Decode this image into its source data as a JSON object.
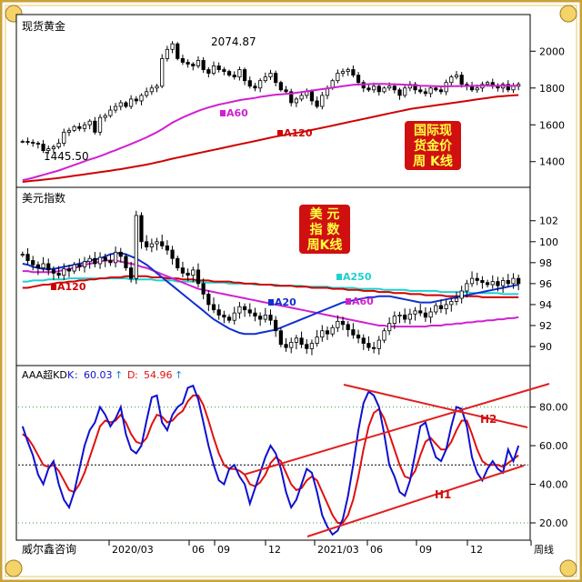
{
  "colors": {
    "frame_gold": "#c9a23a",
    "up_candle": "#ffffff",
    "down_candle": "#000000",
    "ma60": "#d020d0",
    "ma120": "#d00000",
    "ma20": "#1030d0",
    "ma250": "#20d0d0",
    "k_line": "#1010d0",
    "d_line": "#e01010",
    "trend_line": "#e02020",
    "label_box": "#d01010",
    "label_text": "#ffff40"
  },
  "chart_data": [
    {
      "type": "candlestick",
      "panel": "gold",
      "title": "现货黄金",
      "y_ticks": [
        "2000",
        "1800",
        "1600",
        "1400"
      ],
      "ylim": [
        1290,
        2130
      ],
      "annotations": {
        "high": "2074.87",
        "low": "1445.50"
      },
      "label_box": [
        "国际现",
        "货金价",
        "周 K线"
      ],
      "ma_labels": {
        "ma60": "A60",
        "ma120": "A120"
      },
      "series_description": "weekly gold spot candles",
      "close": [
        1510,
        1505,
        1500,
        1495,
        1460,
        1470,
        1480,
        1500,
        1560,
        1570,
        1590,
        1580,
        1600,
        1620,
        1560,
        1640,
        1650,
        1680,
        1700,
        1720,
        1700,
        1740,
        1730,
        1760,
        1780,
        1800,
        1810,
        1960,
        2010,
        2040,
        1960,
        1940,
        1930,
        1920,
        1950,
        1900,
        1880,
        1920,
        1900,
        1890,
        1870,
        1860,
        1900,
        1840,
        1810,
        1800,
        1840,
        1860,
        1880,
        1830,
        1790,
        1780,
        1720,
        1740,
        1760,
        1780,
        1730,
        1700,
        1760,
        1800,
        1840,
        1880,
        1890,
        1900,
        1870,
        1830,
        1800,
        1790,
        1810,
        1780,
        1800,
        1810,
        1790,
        1760,
        1800,
        1820,
        1790,
        1780,
        1770,
        1800,
        1790,
        1780,
        1830,
        1860,
        1870,
        1820,
        1810,
        1790,
        1800,
        1820,
        1830,
        1810,
        1800,
        1820,
        1790,
        1810,
        1820
      ],
      "ma60": [
        1300,
        1305,
        1312,
        1320,
        1328,
        1336,
        1344,
        1352,
        1362,
        1372,
        1382,
        1392,
        1402,
        1412,
        1420,
        1430,
        1440,
        1452,
        1462,
        1474,
        1484,
        1496,
        1508,
        1520,
        1532,
        1546,
        1560,
        1576,
        1594,
        1612,
        1626,
        1640,
        1652,
        1664,
        1676,
        1686,
        1694,
        1702,
        1710,
        1716,
        1722,
        1728,
        1734,
        1738,
        1742,
        1746,
        1752,
        1756,
        1760,
        1764,
        1766,
        1768,
        1770,
        1774,
        1778,
        1782,
        1786,
        1790,
        1794,
        1798,
        1802,
        1806,
        1810,
        1814,
        1817,
        1819,
        1820,
        1821,
        1822,
        1822,
        1822,
        1821,
        1820,
        1819,
        1818,
        1816,
        1815,
        1813,
        1812,
        1811,
        1810,
        1809,
        1809,
        1810,
        1810,
        1811,
        1811,
        1812,
        1812,
        1813,
        1813,
        1813,
        1813,
        1813,
        1813,
        1813,
        1813
      ],
      "ma120": [
        1290,
        1293,
        1296,
        1299,
        1302,
        1305,
        1308,
        1311,
        1315,
        1319,
        1323,
        1327,
        1331,
        1335,
        1339,
        1343,
        1347,
        1351,
        1355,
        1359,
        1364,
        1369,
        1374,
        1379,
        1384,
        1390,
        1396,
        1402,
        1409,
        1416,
        1422,
        1428,
        1434,
        1440,
        1446,
        1452,
        1458,
        1464,
        1470,
        1476,
        1482,
        1488,
        1494,
        1500,
        1506,
        1512,
        1518,
        1524,
        1530,
        1536,
        1541,
        1546,
        1551,
        1556,
        1561,
        1566,
        1572,
        1578,
        1584,
        1590,
        1596,
        1602,
        1608,
        1614,
        1620,
        1626,
        1632,
        1638,
        1644,
        1650,
        1656,
        1662,
        1668,
        1674,
        1680,
        1686,
        1690,
        1694,
        1698,
        1702,
        1706,
        1710,
        1714,
        1718,
        1722,
        1726,
        1730,
        1734,
        1738,
        1742,
        1746,
        1750,
        1754,
        1756,
        1758,
        1760,
        1762
      ]
    },
    {
      "type": "candlestick",
      "panel": "usd",
      "title": "美元指数",
      "y_ticks": [
        "102",
        "100",
        "98",
        "96",
        "94",
        "92",
        "90"
      ],
      "ylim": [
        88.7,
        103.8
      ],
      "label_box": [
        "美  元",
        "指  数",
        "周K线"
      ],
      "ma_labels": {
        "ma120": "A120",
        "ma20": "A20",
        "ma250": "A250",
        "ma60": "A60"
      },
      "close": [
        98.8,
        98.2,
        97.8,
        97.5,
        97.9,
        97.3,
        97.0,
        96.8,
        97.4,
        97.2,
        97.8,
        97.6,
        98.1,
        98.4,
        97.9,
        98.5,
        98.2,
        98.0,
        99.0,
        98.6,
        97.5,
        96.5,
        102.5,
        100.0,
        99.5,
        99.8,
        100.0,
        99.6,
        99.2,
        98.4,
        97.5,
        97.0,
        96.8,
        97.3,
        96.0,
        95.0,
        94.0,
        93.5,
        93.0,
        92.8,
        92.5,
        93.2,
        93.8,
        93.5,
        93.2,
        92.9,
        92.6,
        93.0,
        92.5,
        91.5,
        90.2,
        89.9,
        90.4,
        90.8,
        90.2,
        89.8,
        90.3,
        90.9,
        91.5,
        91.2,
        91.8,
        92.4,
        92.1,
        91.6,
        91.1,
        90.8,
        90.3,
        89.9,
        89.8,
        90.6,
        91.5,
        92.2,
        92.9,
        93.0,
        92.6,
        93.1,
        93.4,
        93.2,
        92.8,
        93.3,
        93.9,
        93.6,
        94.0,
        94.3,
        94.6,
        95.3,
        96.0,
        96.5,
        96.3,
        96.1,
        95.9,
        96.2,
        95.8,
        96.3,
        96.0,
        96.5,
        96.0
      ],
      "ma20": [
        97.9,
        97.8,
        97.6,
        97.5,
        97.4,
        97.4,
        97.4,
        97.5,
        97.6,
        97.7,
        97.8,
        97.9,
        98.0,
        98.2,
        98.3,
        98.4,
        98.6,
        98.8,
        98.9,
        98.9,
        98.8,
        98.6,
        98.4,
        98.1,
        97.8,
        97.4,
        97.0,
        96.6,
        96.2,
        95.8,
        95.4,
        95.0,
        94.6,
        94.2,
        93.8,
        93.4,
        93.0,
        92.6,
        92.3,
        92.0,
        91.7,
        91.5,
        91.3,
        91.2,
        91.2,
        91.2,
        91.3,
        91.4,
        91.5,
        91.6,
        91.8,
        92.0,
        92.2,
        92.4,
        92.6,
        92.8,
        93.0,
        93.2,
        93.4,
        93.6,
        93.8,
        94.0,
        94.2,
        94.3,
        94.4,
        94.5,
        94.6,
        94.7,
        94.7,
        94.8,
        94.8,
        94.8,
        94.7,
        94.6,
        94.5,
        94.4,
        94.3,
        94.2,
        94.2,
        94.2,
        94.3,
        94.4,
        94.5,
        94.6,
        94.7,
        94.8,
        94.9,
        95.0,
        95.1,
        95.2,
        95.3,
        95.4,
        95.5,
        95.6,
        95.7,
        95.8,
        95.9
      ],
      "ma60": [
        97.2,
        97.2,
        97.1,
        97.1,
        97.1,
        97.1,
        97.1,
        97.2,
        97.3,
        97.4,
        97.5,
        97.6,
        97.8,
        97.9,
        98.0,
        98.1,
        98.2,
        98.2,
        98.2,
        98.1,
        98.0,
        97.9,
        97.8,
        97.6,
        97.5,
        97.3,
        97.1,
        96.9,
        96.7,
        96.5,
        96.3,
        96.1,
        95.9,
        95.7,
        95.5,
        95.4,
        95.3,
        95.2,
        95.1,
        95.0,
        94.9,
        94.8,
        94.7,
        94.6,
        94.5,
        94.4,
        94.3,
        94.2,
        94.1,
        94.0,
        93.9,
        93.8,
        93.7,
        93.6,
        93.5,
        93.4,
        93.3,
        93.2,
        93.1,
        93.0,
        92.9,
        92.8,
        92.7,
        92.6,
        92.5,
        92.4,
        92.3,
        92.2,
        92.1,
        92.0,
        92.0,
        91.9,
        91.9,
        91.9,
        91.9,
        91.9,
        91.9,
        91.9,
        91.9,
        92.0,
        92.0,
        92.0,
        92.1,
        92.1,
        92.2,
        92.2,
        92.3,
        92.3,
        92.4,
        92.4,
        92.5,
        92.5,
        92.6,
        92.6,
        92.7,
        92.7,
        92.8
      ],
      "ma120": [
        95.6,
        95.6,
        95.7,
        95.8,
        95.9,
        95.9,
        96.0,
        96.1,
        96.1,
        96.2,
        96.2,
        96.3,
        96.3,
        96.4,
        96.4,
        96.5,
        96.5,
        96.6,
        96.6,
        96.6,
        96.7,
        96.7,
        96.7,
        96.7,
        96.7,
        96.6,
        96.6,
        96.6,
        96.5,
        96.5,
        96.5,
        96.4,
        96.4,
        96.4,
        96.3,
        96.3,
        96.3,
        96.2,
        96.2,
        96.2,
        96.2,
        96.1,
        96.1,
        96.0,
        96.0,
        96.0,
        95.9,
        95.9,
        95.9,
        95.8,
        95.8,
        95.8,
        95.8,
        95.7,
        95.7,
        95.7,
        95.6,
        95.6,
        95.6,
        95.6,
        95.5,
        95.5,
        95.5,
        95.4,
        95.4,
        95.4,
        95.3,
        95.3,
        95.3,
        95.2,
        95.2,
        95.2,
        95.1,
        95.1,
        95.1,
        95.0,
        95.0,
        95.0,
        94.9,
        94.9,
        94.9,
        94.9,
        94.8,
        94.8,
        94.8,
        94.8,
        94.8,
        94.8,
        94.8,
        94.7,
        94.7,
        94.7,
        94.7,
        94.7,
        94.7,
        94.7,
        94.7
      ],
      "ma250": [
        96.2,
        96.2,
        96.3,
        96.3,
        96.3,
        96.4,
        96.4,
        96.4,
        96.4,
        96.5,
        96.5,
        96.5,
        96.5,
        96.5,
        96.5,
        96.5,
        96.5,
        96.5,
        96.5,
        96.5,
        96.5,
        96.4,
        96.4,
        96.4,
        96.4,
        96.4,
        96.3,
        96.3,
        96.3,
        96.3,
        96.2,
        96.2,
        96.2,
        96.2,
        96.2,
        96.1,
        96.1,
        96.1,
        96.1,
        96.1,
        96.0,
        96.0,
        96.0,
        96.0,
        96.0,
        95.9,
        95.9,
        95.9,
        95.9,
        95.9,
        95.8,
        95.8,
        95.8,
        95.8,
        95.8,
        95.7,
        95.7,
        95.7,
        95.7,
        95.7,
        95.6,
        95.6,
        95.6,
        95.6,
        95.6,
        95.5,
        95.5,
        95.5,
        95.5,
        95.5,
        95.4,
        95.4,
        95.4,
        95.4,
        95.4,
        95.3,
        95.3,
        95.3,
        95.3,
        95.3,
        95.3,
        95.2,
        95.2,
        95.2,
        95.2,
        95.2,
        95.2,
        95.1,
        95.1,
        95.1,
        95.1,
        95.1,
        95.1,
        95.0,
        95.0,
        95.0,
        95.0
      ]
    },
    {
      "type": "line",
      "panel": "kd",
      "title": "AAA超KD",
      "legend": [
        {
          "name": "K",
          "value": "60.03",
          "arrow": "↑"
        },
        {
          "name": "D",
          "value": "54.96",
          "arrow": "↑"
        }
      ],
      "y_ticks": [
        "80.00",
        "60.00",
        "40.00",
        "20.00"
      ],
      "ylim": [
        12,
        93
      ],
      "ref_lines": [
        80,
        50,
        20
      ],
      "trend_labels": [
        "H1",
        "H2"
      ],
      "K": [
        70,
        62,
        55,
        45,
        40,
        48,
        52,
        40,
        32,
        28,
        36,
        48,
        60,
        68,
        72,
        80,
        76,
        70,
        74,
        80,
        66,
        58,
        56,
        60,
        73,
        85,
        86,
        72,
        68,
        76,
        80,
        82,
        90,
        91,
        84,
        72,
        60,
        50,
        42,
        40,
        48,
        50,
        44,
        40,
        30,
        38,
        46,
        54,
        60,
        56,
        48,
        36,
        28,
        32,
        40,
        48,
        46,
        36,
        24,
        18,
        14,
        16,
        22,
        34,
        50,
        68,
        82,
        88,
        86,
        80,
        66,
        50,
        44,
        36,
        34,
        42,
        56,
        70,
        72,
        62,
        54,
        52,
        58,
        70,
        80,
        79,
        70,
        54,
        46,
        42,
        48,
        52,
        48,
        46,
        58,
        52,
        60
      ],
      "D": [
        66,
        64,
        60,
        55,
        50,
        49,
        50,
        47,
        42,
        37,
        36,
        40,
        46,
        54,
        62,
        70,
        73,
        72,
        73,
        76,
        72,
        66,
        62,
        61,
        64,
        71,
        76,
        75,
        72,
        73,
        76,
        78,
        83,
        86,
        86,
        81,
        73,
        64,
        56,
        50,
        48,
        48,
        47,
        45,
        40,
        39,
        41,
        45,
        51,
        54,
        52,
        46,
        40,
        37,
        38,
        42,
        44,
        42,
        36,
        30,
        24,
        20,
        20,
        24,
        32,
        44,
        58,
        70,
        77,
        79,
        74,
        66,
        58,
        50,
        44,
        43,
        47,
        55,
        62,
        64,
        61,
        58,
        58,
        62,
        68,
        73,
        73,
        66,
        58,
        52,
        50,
        50,
        50,
        49,
        51,
        53,
        55
      ],
      "x_ticks": [
        "2020/03",
        "06",
        "09",
        "12",
        "2021/03",
        "06",
        "09",
        "12",
        "周线"
      ],
      "source": "威尔鑫咨询"
    }
  ]
}
